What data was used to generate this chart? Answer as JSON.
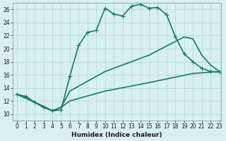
{
  "xlabel": "Humidex (Indice chaleur)",
  "bg_color": "#d8f0f0",
  "line_color": "#1a7a6a",
  "grid_color": "#b0d8d8",
  "xlim_min": -0.5,
  "xlim_max": 23.2,
  "ylim_min": 9,
  "ylim_max": 27,
  "xticks": [
    0,
    1,
    2,
    3,
    4,
    5,
    6,
    7,
    8,
    9,
    10,
    11,
    12,
    13,
    14,
    15,
    16,
    17,
    18,
    19,
    20,
    21,
    22,
    23
  ],
  "yticks": [
    10,
    12,
    14,
    16,
    18,
    20,
    22,
    24,
    26
  ],
  "line1_x": [
    0,
    1,
    2,
    3,
    4,
    5,
    6,
    7,
    8,
    9,
    10,
    11,
    12,
    13,
    14,
    15,
    16,
    17,
    18,
    19,
    20,
    21,
    22,
    23
  ],
  "line1_y": [
    13.0,
    12.7,
    11.8,
    11.0,
    10.5,
    10.6,
    15.8,
    20.5,
    22.5,
    22.8,
    26.2,
    25.3,
    25.0,
    26.5,
    26.8,
    26.2,
    26.3,
    25.2,
    21.8,
    19.2,
    18.0,
    17.0,
    16.5,
    16.4
  ],
  "line2_x": [
    0,
    2,
    4,
    5,
    6,
    10,
    15,
    19,
    20,
    21,
    22,
    23
  ],
  "line2_y": [
    13.0,
    11.8,
    10.5,
    11.0,
    13.5,
    16.5,
    19.0,
    21.8,
    21.5,
    19.0,
    17.5,
    16.5
  ],
  "line3_x": [
    0,
    2,
    4,
    5,
    6,
    10,
    15,
    20,
    23
  ],
  "line3_y": [
    13.0,
    11.8,
    10.5,
    11.0,
    12.0,
    13.5,
    14.8,
    16.2,
    16.5
  ],
  "linewidth": 1.2,
  "marker_size": 4
}
